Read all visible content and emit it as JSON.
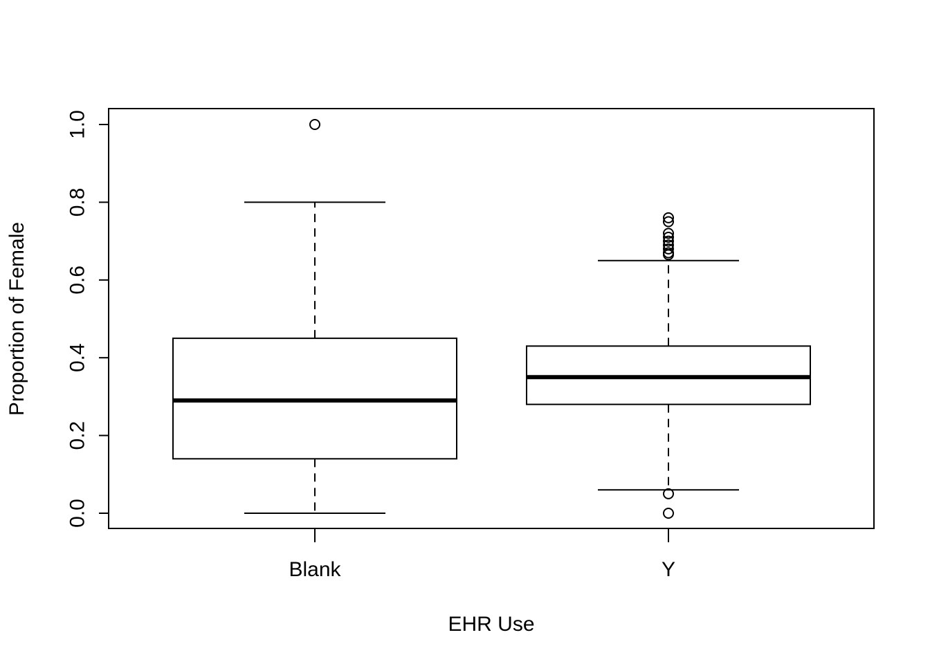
{
  "chart_data": {
    "type": "boxplot",
    "xlabel": "EHR Use",
    "ylabel": "Proportion of Female",
    "ylim": [
      -0.04,
      1.04
    ],
    "yticks": [
      {
        "value": 0.0,
        "label": "0.0"
      },
      {
        "value": 0.2,
        "label": "0.2"
      },
      {
        "value": 0.4,
        "label": "0.4"
      },
      {
        "value": 0.6,
        "label": "0.6"
      },
      {
        "value": 0.8,
        "label": "0.8"
      },
      {
        "value": 1.0,
        "label": "1.0"
      }
    ],
    "grid": false,
    "categories": [
      "Blank",
      "Y"
    ],
    "boxes": [
      {
        "category": "Blank",
        "whisker_low": 0.0,
        "q1": 0.14,
        "median": 0.29,
        "q3": 0.45,
        "whisker_high": 0.8,
        "outliers": [
          1.0
        ]
      },
      {
        "category": "Y",
        "whisker_low": 0.06,
        "q1": 0.28,
        "median": 0.35,
        "q3": 0.43,
        "whisker_high": 0.65,
        "outliers": [
          0.76,
          0.75,
          0.72,
          0.71,
          0.7,
          0.69,
          0.68,
          0.67,
          0.665,
          0.05,
          0.0
        ]
      }
    ],
    "colors": {
      "box_fill": "#ffffff",
      "stroke": "#000000"
    }
  }
}
